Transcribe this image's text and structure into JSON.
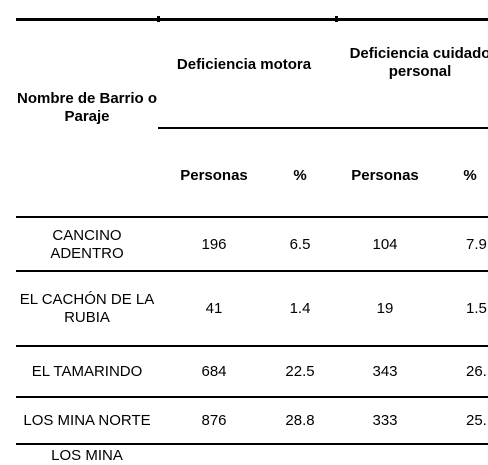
{
  "table": {
    "header": {
      "name_col": "Nombre de Barrio o Paraje",
      "group_motora": "Deficiencia motora",
      "group_cuidado": "Deficiencia cuidado personal",
      "sub_personas_1": "Personas",
      "sub_pct_1": "%",
      "sub_personas_2": "Personas",
      "sub_pct_2": "%"
    },
    "rows": [
      {
        "name": "CANCINO ADENTRO",
        "motora_personas": "196",
        "motora_pct": "6.5",
        "cuidado_personas": "104",
        "cuidado_pct": "7.9"
      },
      {
        "name": "EL CACHÓN DE LA RUBIA",
        "motora_personas": "41",
        "motora_pct": "1.4",
        "cuidado_personas": "19",
        "cuidado_pct": "1.5"
      },
      {
        "name": "EL TAMARINDO",
        "motora_personas": "684",
        "motora_pct": "22.5",
        "cuidado_personas": "343",
        "cuidado_pct": "26."
      },
      {
        "name": "LOS MINA NORTE",
        "motora_personas": "876",
        "motora_pct": "28.8",
        "cuidado_personas": "333",
        "cuidado_pct": "25."
      },
      {
        "name": "LOS MINA",
        "motora_personas": "",
        "motora_pct": "",
        "cuidado_personas": "",
        "cuidado_pct": ""
      }
    ]
  }
}
